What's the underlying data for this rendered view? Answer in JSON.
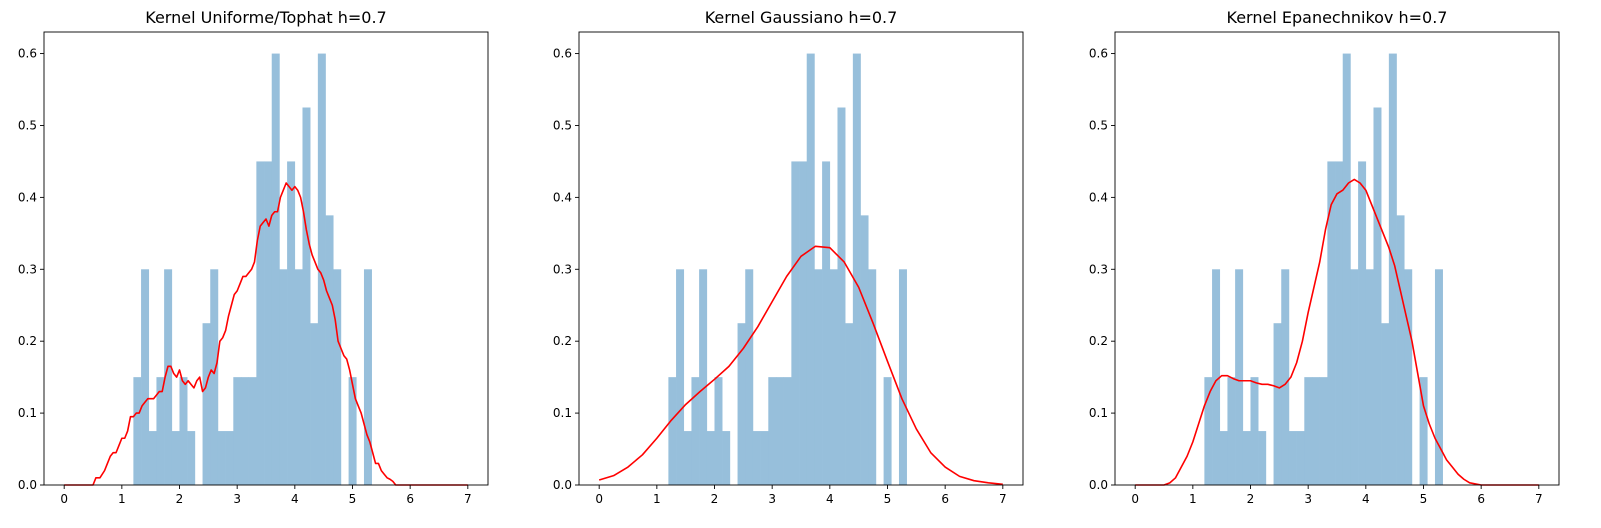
{
  "chart_data": [
    {
      "type": "bar",
      "title": "Kernel Uniforme/Tophat h=0.7",
      "xlabel": "",
      "ylabel": "",
      "xlim": [
        -0.35,
        7.35
      ],
      "ylim": [
        0,
        0.63
      ],
      "xticks": [
        0,
        1,
        2,
        3,
        4,
        5,
        6,
        7
      ],
      "yticks": [
        0.0,
        0.1,
        0.2,
        0.3,
        0.4,
        0.5,
        0.6
      ],
      "grid": false,
      "histogram": {
        "bin_start": 1.2,
        "bin_width": 0.1333,
        "color": "#97bfdb",
        "values": [
          0.15,
          0.3,
          0.075,
          0.15,
          0.3,
          0.075,
          0.15,
          0.075,
          0,
          0.225,
          0.3,
          0.075,
          0.075,
          0.15,
          0.15,
          0.15,
          0.45,
          0.45,
          0.6,
          0.3,
          0.45,
          0.3,
          0.525,
          0.225,
          0.6,
          0.375,
          0.3,
          0.0,
          0.15,
          0.0,
          0.3
        ]
      },
      "series": [
        {
          "kind": "line",
          "color": "#ff0000",
          "x": [
            0,
            0.5,
            0.55,
            0.62,
            0.7,
            0.75,
            0.8,
            0.85,
            0.9,
            0.95,
            1.0,
            1.05,
            1.1,
            1.15,
            1.2,
            1.25,
            1.3,
            1.35,
            1.4,
            1.45,
            1.5,
            1.55,
            1.6,
            1.65,
            1.7,
            1.75,
            1.8,
            1.85,
            1.9,
            1.95,
            2.0,
            2.05,
            2.1,
            2.15,
            2.2,
            2.25,
            2.3,
            2.35,
            2.4,
            2.45,
            2.5,
            2.55,
            2.6,
            2.65,
            2.7,
            2.75,
            2.8,
            2.85,
            2.9,
            2.95,
            3.0,
            3.05,
            3.1,
            3.15,
            3.2,
            3.25,
            3.3,
            3.35,
            3.4,
            3.45,
            3.5,
            3.55,
            3.6,
            3.65,
            3.7,
            3.75,
            3.8,
            3.85,
            3.9,
            3.95,
            4.0,
            4.05,
            4.1,
            4.15,
            4.2,
            4.25,
            4.3,
            4.35,
            4.4,
            4.45,
            4.5,
            4.55,
            4.6,
            4.65,
            4.7,
            4.75,
            4.8,
            4.85,
            4.9,
            4.95,
            5.0,
            5.05,
            5.1,
            5.15,
            5.2,
            5.25,
            5.3,
            5.35,
            5.4,
            5.45,
            5.5,
            5.55,
            5.6,
            5.65,
            5.7,
            5.75,
            5.8,
            5.85,
            5.9,
            5.95,
            7.0
          ],
          "y": [
            0,
            0,
            0.01,
            0.01,
            0.02,
            0.03,
            0.04,
            0.045,
            0.045,
            0.055,
            0.065,
            0.065,
            0.075,
            0.095,
            0.095,
            0.1,
            0.1,
            0.11,
            0.115,
            0.12,
            0.12,
            0.12,
            0.125,
            0.13,
            0.13,
            0.15,
            0.165,
            0.165,
            0.155,
            0.15,
            0.16,
            0.145,
            0.14,
            0.145,
            0.14,
            0.135,
            0.145,
            0.15,
            0.13,
            0.135,
            0.15,
            0.16,
            0.155,
            0.17,
            0.2,
            0.205,
            0.215,
            0.235,
            0.25,
            0.265,
            0.27,
            0.28,
            0.29,
            0.29,
            0.295,
            0.3,
            0.31,
            0.34,
            0.36,
            0.365,
            0.37,
            0.36,
            0.375,
            0.38,
            0.38,
            0.4,
            0.41,
            0.42,
            0.415,
            0.41,
            0.415,
            0.41,
            0.4,
            0.38,
            0.355,
            0.335,
            0.32,
            0.31,
            0.3,
            0.295,
            0.285,
            0.27,
            0.26,
            0.25,
            0.23,
            0.2,
            0.19,
            0.18,
            0.175,
            0.16,
            0.14,
            0.12,
            0.11,
            0.1,
            0.085,
            0.07,
            0.06,
            0.045,
            0.03,
            0.03,
            0.02,
            0.015,
            0.01,
            0.008,
            0.005,
            0,
            0,
            0,
            0,
            0,
            0
          ]
        }
      ]
    },
    {
      "type": "bar",
      "title": "Kernel Gaussiano h=0.7",
      "xlabel": "",
      "ylabel": "",
      "xlim": [
        -0.35,
        7.35
      ],
      "ylim": [
        0,
        0.63
      ],
      "xticks": [
        0,
        1,
        2,
        3,
        4,
        5,
        6,
        7
      ],
      "yticks": [
        0.0,
        0.1,
        0.2,
        0.3,
        0.4,
        0.5,
        0.6
      ],
      "grid": false,
      "histogram": {
        "bin_start": 1.2,
        "bin_width": 0.1333,
        "color": "#97bfdb",
        "values": [
          0.15,
          0.3,
          0.075,
          0.15,
          0.3,
          0.075,
          0.15,
          0.075,
          0,
          0.225,
          0.3,
          0.075,
          0.075,
          0.15,
          0.15,
          0.15,
          0.45,
          0.45,
          0.6,
          0.3,
          0.45,
          0.3,
          0.525,
          0.225,
          0.6,
          0.375,
          0.3,
          0.0,
          0.15,
          0.0,
          0.3
        ]
      },
      "series": [
        {
          "kind": "line",
          "color": "#ff0000",
          "x": [
            0,
            0.25,
            0.5,
            0.75,
            1.0,
            1.25,
            1.5,
            1.75,
            2.0,
            2.25,
            2.5,
            2.75,
            3.0,
            3.25,
            3.5,
            3.75,
            4.0,
            4.25,
            4.5,
            4.75,
            5.0,
            5.25,
            5.5,
            5.75,
            6.0,
            6.25,
            6.5,
            6.75,
            7.0
          ],
          "y": [
            0.007,
            0.013,
            0.025,
            0.042,
            0.065,
            0.09,
            0.112,
            0.13,
            0.147,
            0.165,
            0.19,
            0.22,
            0.255,
            0.29,
            0.318,
            0.332,
            0.33,
            0.31,
            0.275,
            0.225,
            0.172,
            0.12,
            0.078,
            0.045,
            0.025,
            0.012,
            0.006,
            0.003,
            0.001
          ]
        }
      ]
    },
    {
      "type": "bar",
      "title": "Kernel Epanechnikov h=0.7",
      "xlabel": "",
      "ylabel": "",
      "xlim": [
        -0.35,
        7.35
      ],
      "ylim": [
        0,
        0.63
      ],
      "xticks": [
        0,
        1,
        2,
        3,
        4,
        5,
        6,
        7
      ],
      "yticks": [
        0.0,
        0.1,
        0.2,
        0.3,
        0.4,
        0.5,
        0.6
      ],
      "grid": false,
      "histogram": {
        "bin_start": 1.2,
        "bin_width": 0.1333,
        "color": "#97bfdb",
        "values": [
          0.15,
          0.3,
          0.075,
          0.15,
          0.3,
          0.075,
          0.15,
          0.075,
          0,
          0.225,
          0.3,
          0.075,
          0.075,
          0.15,
          0.15,
          0.15,
          0.45,
          0.45,
          0.6,
          0.3,
          0.45,
          0.3,
          0.525,
          0.225,
          0.6,
          0.375,
          0.3,
          0.0,
          0.15,
          0.0,
          0.3
        ]
      },
      "series": [
        {
          "kind": "line",
          "color": "#ff0000",
          "x": [
            0,
            0.5,
            0.6,
            0.7,
            0.8,
            0.9,
            1.0,
            1.1,
            1.2,
            1.3,
            1.4,
            1.5,
            1.6,
            1.7,
            1.8,
            1.9,
            2.0,
            2.1,
            2.2,
            2.3,
            2.4,
            2.5,
            2.6,
            2.7,
            2.8,
            2.9,
            3.0,
            3.1,
            3.2,
            3.3,
            3.4,
            3.5,
            3.6,
            3.7,
            3.8,
            3.9,
            4.0,
            4.1,
            4.2,
            4.3,
            4.4,
            4.5,
            4.6,
            4.7,
            4.8,
            4.9,
            5.0,
            5.1,
            5.2,
            5.3,
            5.4,
            5.5,
            5.6,
            5.7,
            5.8,
            6.0,
            7.0
          ],
          "y": [
            0,
            0,
            0.003,
            0.01,
            0.025,
            0.04,
            0.06,
            0.085,
            0.11,
            0.13,
            0.145,
            0.152,
            0.152,
            0.148,
            0.145,
            0.145,
            0.145,
            0.142,
            0.14,
            0.14,
            0.138,
            0.135,
            0.14,
            0.15,
            0.17,
            0.2,
            0.24,
            0.275,
            0.31,
            0.355,
            0.39,
            0.405,
            0.41,
            0.42,
            0.425,
            0.42,
            0.41,
            0.39,
            0.37,
            0.35,
            0.33,
            0.305,
            0.27,
            0.235,
            0.2,
            0.155,
            0.11,
            0.085,
            0.065,
            0.05,
            0.035,
            0.025,
            0.015,
            0.008,
            0.003,
            0,
            0
          ]
        }
      ]
    }
  ]
}
